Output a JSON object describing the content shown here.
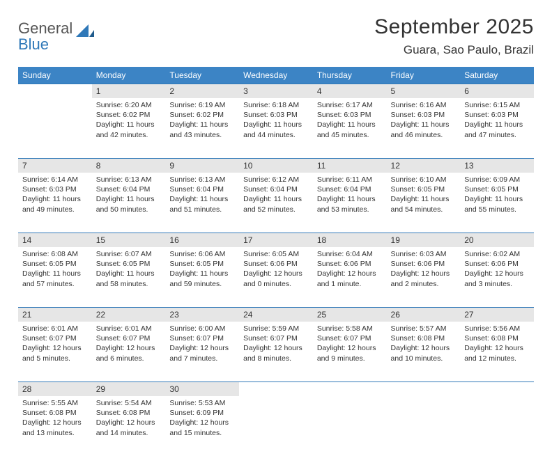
{
  "logo": {
    "word1": "General",
    "word2": "Blue"
  },
  "title": "September 2025",
  "location": "Guara, Sao Paulo, Brazil",
  "colors": {
    "header_bg": "#3c84c5",
    "header_text": "#ffffff",
    "daynum_bg": "#e6e6e6",
    "rule": "#2f78b8",
    "text": "#333333",
    "logo_gray": "#555555",
    "logo_blue": "#2f78b8",
    "page_bg": "#ffffff"
  },
  "typography": {
    "title_fontsize": 30,
    "location_fontsize": 17,
    "dayheader_fontsize": 12,
    "daynum_fontsize": 12,
    "body_fontsize": 10.5,
    "logo_fontsize": 22
  },
  "layout": {
    "columns": 7,
    "rows": 5,
    "col_width_pct": 14.28
  },
  "day_headers": [
    "Sunday",
    "Monday",
    "Tuesday",
    "Wednesday",
    "Thursday",
    "Friday",
    "Saturday"
  ],
  "weeks": [
    [
      {
        "n": "",
        "sunrise": "",
        "sunset": "",
        "daylight": ""
      },
      {
        "n": "1",
        "sunrise": "Sunrise: 6:20 AM",
        "sunset": "Sunset: 6:02 PM",
        "daylight": "Daylight: 11 hours and 42 minutes."
      },
      {
        "n": "2",
        "sunrise": "Sunrise: 6:19 AM",
        "sunset": "Sunset: 6:02 PM",
        "daylight": "Daylight: 11 hours and 43 minutes."
      },
      {
        "n": "3",
        "sunrise": "Sunrise: 6:18 AM",
        "sunset": "Sunset: 6:03 PM",
        "daylight": "Daylight: 11 hours and 44 minutes."
      },
      {
        "n": "4",
        "sunrise": "Sunrise: 6:17 AM",
        "sunset": "Sunset: 6:03 PM",
        "daylight": "Daylight: 11 hours and 45 minutes."
      },
      {
        "n": "5",
        "sunrise": "Sunrise: 6:16 AM",
        "sunset": "Sunset: 6:03 PM",
        "daylight": "Daylight: 11 hours and 46 minutes."
      },
      {
        "n": "6",
        "sunrise": "Sunrise: 6:15 AM",
        "sunset": "Sunset: 6:03 PM",
        "daylight": "Daylight: 11 hours and 47 minutes."
      }
    ],
    [
      {
        "n": "7",
        "sunrise": "Sunrise: 6:14 AM",
        "sunset": "Sunset: 6:03 PM",
        "daylight": "Daylight: 11 hours and 49 minutes."
      },
      {
        "n": "8",
        "sunrise": "Sunrise: 6:13 AM",
        "sunset": "Sunset: 6:04 PM",
        "daylight": "Daylight: 11 hours and 50 minutes."
      },
      {
        "n": "9",
        "sunrise": "Sunrise: 6:13 AM",
        "sunset": "Sunset: 6:04 PM",
        "daylight": "Daylight: 11 hours and 51 minutes."
      },
      {
        "n": "10",
        "sunrise": "Sunrise: 6:12 AM",
        "sunset": "Sunset: 6:04 PM",
        "daylight": "Daylight: 11 hours and 52 minutes."
      },
      {
        "n": "11",
        "sunrise": "Sunrise: 6:11 AM",
        "sunset": "Sunset: 6:04 PM",
        "daylight": "Daylight: 11 hours and 53 minutes."
      },
      {
        "n": "12",
        "sunrise": "Sunrise: 6:10 AM",
        "sunset": "Sunset: 6:05 PM",
        "daylight": "Daylight: 11 hours and 54 minutes."
      },
      {
        "n": "13",
        "sunrise": "Sunrise: 6:09 AM",
        "sunset": "Sunset: 6:05 PM",
        "daylight": "Daylight: 11 hours and 55 minutes."
      }
    ],
    [
      {
        "n": "14",
        "sunrise": "Sunrise: 6:08 AM",
        "sunset": "Sunset: 6:05 PM",
        "daylight": "Daylight: 11 hours and 57 minutes."
      },
      {
        "n": "15",
        "sunrise": "Sunrise: 6:07 AM",
        "sunset": "Sunset: 6:05 PM",
        "daylight": "Daylight: 11 hours and 58 minutes."
      },
      {
        "n": "16",
        "sunrise": "Sunrise: 6:06 AM",
        "sunset": "Sunset: 6:05 PM",
        "daylight": "Daylight: 11 hours and 59 minutes."
      },
      {
        "n": "17",
        "sunrise": "Sunrise: 6:05 AM",
        "sunset": "Sunset: 6:06 PM",
        "daylight": "Daylight: 12 hours and 0 minutes."
      },
      {
        "n": "18",
        "sunrise": "Sunrise: 6:04 AM",
        "sunset": "Sunset: 6:06 PM",
        "daylight": "Daylight: 12 hours and 1 minute."
      },
      {
        "n": "19",
        "sunrise": "Sunrise: 6:03 AM",
        "sunset": "Sunset: 6:06 PM",
        "daylight": "Daylight: 12 hours and 2 minutes."
      },
      {
        "n": "20",
        "sunrise": "Sunrise: 6:02 AM",
        "sunset": "Sunset: 6:06 PM",
        "daylight": "Daylight: 12 hours and 3 minutes."
      }
    ],
    [
      {
        "n": "21",
        "sunrise": "Sunrise: 6:01 AM",
        "sunset": "Sunset: 6:07 PM",
        "daylight": "Daylight: 12 hours and 5 minutes."
      },
      {
        "n": "22",
        "sunrise": "Sunrise: 6:01 AM",
        "sunset": "Sunset: 6:07 PM",
        "daylight": "Daylight: 12 hours and 6 minutes."
      },
      {
        "n": "23",
        "sunrise": "Sunrise: 6:00 AM",
        "sunset": "Sunset: 6:07 PM",
        "daylight": "Daylight: 12 hours and 7 minutes."
      },
      {
        "n": "24",
        "sunrise": "Sunrise: 5:59 AM",
        "sunset": "Sunset: 6:07 PM",
        "daylight": "Daylight: 12 hours and 8 minutes."
      },
      {
        "n": "25",
        "sunrise": "Sunrise: 5:58 AM",
        "sunset": "Sunset: 6:07 PM",
        "daylight": "Daylight: 12 hours and 9 minutes."
      },
      {
        "n": "26",
        "sunrise": "Sunrise: 5:57 AM",
        "sunset": "Sunset: 6:08 PM",
        "daylight": "Daylight: 12 hours and 10 minutes."
      },
      {
        "n": "27",
        "sunrise": "Sunrise: 5:56 AM",
        "sunset": "Sunset: 6:08 PM",
        "daylight": "Daylight: 12 hours and 12 minutes."
      }
    ],
    [
      {
        "n": "28",
        "sunrise": "Sunrise: 5:55 AM",
        "sunset": "Sunset: 6:08 PM",
        "daylight": "Daylight: 12 hours and 13 minutes."
      },
      {
        "n": "29",
        "sunrise": "Sunrise: 5:54 AM",
        "sunset": "Sunset: 6:08 PM",
        "daylight": "Daylight: 12 hours and 14 minutes."
      },
      {
        "n": "30",
        "sunrise": "Sunrise: 5:53 AM",
        "sunset": "Sunset: 6:09 PM",
        "daylight": "Daylight: 12 hours and 15 minutes."
      },
      {
        "n": "",
        "sunrise": "",
        "sunset": "",
        "daylight": ""
      },
      {
        "n": "",
        "sunrise": "",
        "sunset": "",
        "daylight": ""
      },
      {
        "n": "",
        "sunrise": "",
        "sunset": "",
        "daylight": ""
      },
      {
        "n": "",
        "sunrise": "",
        "sunset": "",
        "daylight": ""
      }
    ]
  ]
}
